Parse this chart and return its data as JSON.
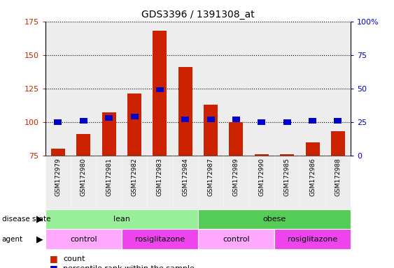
{
  "title": "GDS3396 / 1391308_at",
  "samples": [
    "GSM172979",
    "GSM172980",
    "GSM172981",
    "GSM172982",
    "GSM172983",
    "GSM172984",
    "GSM172987",
    "GSM172989",
    "GSM172990",
    "GSM172985",
    "GSM172986",
    "GSM172988"
  ],
  "count_values": [
    80,
    91,
    107,
    121,
    168,
    141,
    113,
    100,
    76,
    76,
    85,
    93
  ],
  "percentile_values": [
    25,
    26,
    28,
    29,
    49,
    27,
    27,
    27,
    25,
    25,
    26,
    26
  ],
  "ymin": 75,
  "ymax": 175,
  "yticks": [
    75,
    100,
    125,
    150,
    175
  ],
  "y2min": 0,
  "y2max": 100,
  "y2ticks": [
    0,
    25,
    50,
    75,
    100
  ],
  "bar_color": "#cc2200",
  "percentile_color": "#0000cc",
  "lean_color": "#99ee99",
  "obese_color": "#55cc55",
  "control_color": "#ffaaff",
  "rosiglitazone_color": "#ee44ee",
  "disease_state_groups": [
    {
      "label": "lean",
      "start": 0,
      "end": 6,
      "color": "#99ee99"
    },
    {
      "label": "obese",
      "start": 6,
      "end": 12,
      "color": "#55cc55"
    }
  ],
  "agent_groups": [
    {
      "label": "control",
      "start": 0,
      "end": 3,
      "color": "#ffaaff"
    },
    {
      "label": "rosiglitazone",
      "start": 3,
      "end": 6,
      "color": "#ee44ee"
    },
    {
      "label": "control",
      "start": 6,
      "end": 9,
      "color": "#ffaaff"
    },
    {
      "label": "rosiglitazone",
      "start": 9,
      "end": 12,
      "color": "#ee44ee"
    }
  ],
  "legend_count_color": "#cc2200",
  "legend_percentile_color": "#0000cc",
  "col_bg_color": "#cccccc",
  "col_bg_alpha": 0.35
}
